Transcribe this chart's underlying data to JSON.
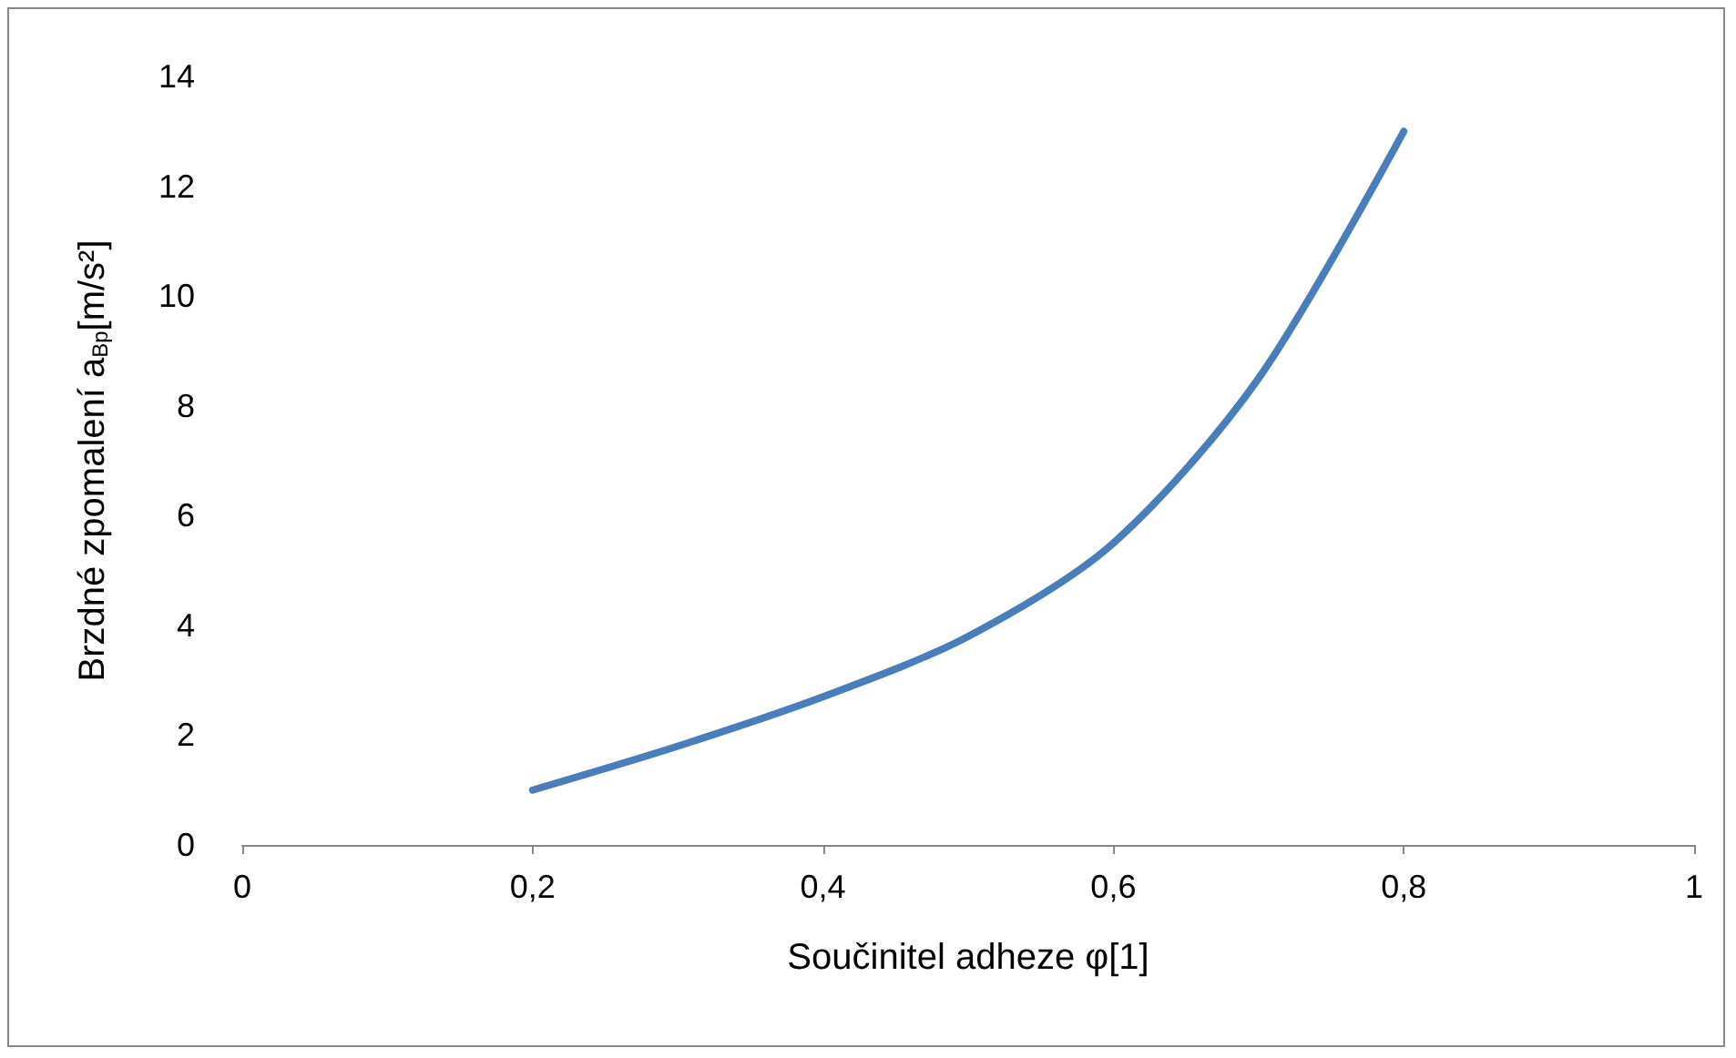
{
  "chart_data": {
    "type": "line",
    "xlabel": "Součinitel adheze φ[1]",
    "ylabel": "Brzdné zpomalení a$_{Bp}$[m/s²]",
    "x": [
      0.2,
      0.3,
      0.4,
      0.5,
      0.6,
      0.7,
      0.8
    ],
    "series": [
      {
        "color": "#4a7ebb",
        "values": [
          1.0,
          1.8,
          2.7,
          3.8,
          5.5,
          8.5,
          13.0
        ]
      }
    ],
    "xlim": [
      0,
      1
    ],
    "xticks": [
      0,
      {
        "value": 0.2,
        "label": "0,2"
      },
      {
        "value": 0.4,
        "label": "0,4"
      },
      {
        "value": 0.6,
        "label": "0,6"
      },
      {
        "value": 0.8,
        "label": "0,8"
      },
      1
    ],
    "ylim": [
      0,
      14
    ],
    "yticks": [
      0,
      2,
      4,
      6,
      8,
      10,
      12,
      14
    ],
    "grid": false,
    "marker": "none",
    "line_style": "solid"
  }
}
